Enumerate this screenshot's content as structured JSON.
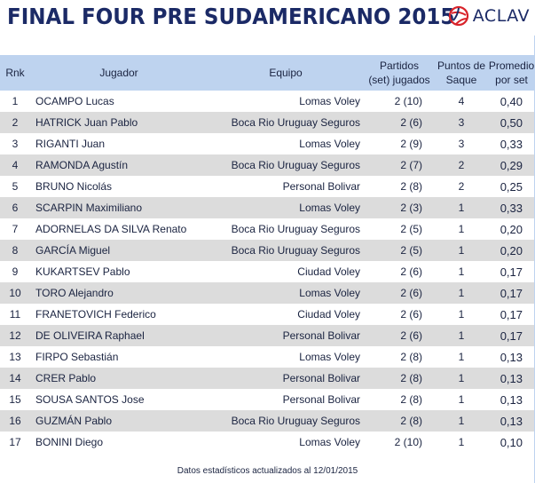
{
  "header": {
    "title": "FINAL FOUR PRE SUDAMERICANO 2015",
    "logo_text": "ACLAV",
    "logo_icon": "aclav-volleyball-logo",
    "colors": {
      "title": "#1b2a66",
      "logo_red": "#d8232a",
      "header_band": "#bed3ef",
      "stripe": "#dcdcdc"
    }
  },
  "table": {
    "columns": {
      "rnk": "Rnk",
      "jugador": "Jugador",
      "equipo": "Equipo",
      "partidos_line1": "Partidos",
      "partidos_line2": "(set) jugados",
      "puntos_line1": "Puntos de",
      "puntos_line2": "Saque",
      "promedio_line1": "Promedio",
      "promedio_line2": "por set"
    },
    "rows": [
      {
        "rnk": "1",
        "jugador": "OCAMPO Lucas",
        "equipo": "Lomas Voley",
        "partidos": "2 (10)",
        "puntos": "4",
        "promedio": "0,40"
      },
      {
        "rnk": "2",
        "jugador": "HATRICK Juan Pablo",
        "equipo": "Boca Rio Uruguay Seguros",
        "partidos": "2 (6)",
        "puntos": "3",
        "promedio": "0,50"
      },
      {
        "rnk": "3",
        "jugador": "RIGANTI Juan",
        "equipo": "Lomas Voley",
        "partidos": "2 (9)",
        "puntos": "3",
        "promedio": "0,33"
      },
      {
        "rnk": "4",
        "jugador": "RAMONDA Agustín",
        "equipo": "Boca Rio Uruguay Seguros",
        "partidos": "2 (7)",
        "puntos": "2",
        "promedio": "0,29"
      },
      {
        "rnk": "5",
        "jugador": "BRUNO Nicolás",
        "equipo": "Personal Bolivar",
        "partidos": "2 (8)",
        "puntos": "2",
        "promedio": "0,25"
      },
      {
        "rnk": "6",
        "jugador": "SCARPIN Maximiliano",
        "equipo": "Lomas Voley",
        "partidos": "2 (3)",
        "puntos": "1",
        "promedio": "0,33"
      },
      {
        "rnk": "7",
        "jugador": "ADORNELAS DA SILVA Renato",
        "equipo": "Boca Rio Uruguay Seguros",
        "partidos": "2 (5)",
        "puntos": "1",
        "promedio": "0,20"
      },
      {
        "rnk": "8",
        "jugador": "GARCÍA Miguel",
        "equipo": "Boca Rio Uruguay Seguros",
        "partidos": "2 (5)",
        "puntos": "1",
        "promedio": "0,20"
      },
      {
        "rnk": "9",
        "jugador": "KUKARTSEV Pablo",
        "equipo": "Ciudad Voley",
        "partidos": "2 (6)",
        "puntos": "1",
        "promedio": "0,17"
      },
      {
        "rnk": "10",
        "jugador": "TORO Alejandro",
        "equipo": "Lomas Voley",
        "partidos": "2 (6)",
        "puntos": "1",
        "promedio": "0,17"
      },
      {
        "rnk": "11",
        "jugador": "FRANETOVICH Federico",
        "equipo": "Ciudad Voley",
        "partidos": "2 (6)",
        "puntos": "1",
        "promedio": "0,17"
      },
      {
        "rnk": "12",
        "jugador": "DE OLIVEIRA Raphael",
        "equipo": "Personal Bolivar",
        "partidos": "2 (6)",
        "puntos": "1",
        "promedio": "0,17"
      },
      {
        "rnk": "13",
        "jugador": "FIRPO Sebastián",
        "equipo": "Lomas Voley",
        "partidos": "2 (8)",
        "puntos": "1",
        "promedio": "0,13"
      },
      {
        "rnk": "14",
        "jugador": "CRER Pablo",
        "equipo": "Personal Bolivar",
        "partidos": "2 (8)",
        "puntos": "1",
        "promedio": "0,13"
      },
      {
        "rnk": "15",
        "jugador": "SOUSA SANTOS Jose",
        "equipo": "Personal Bolivar",
        "partidos": "2 (8)",
        "puntos": "1",
        "promedio": "0,13"
      },
      {
        "rnk": "16",
        "jugador": "GUZMÁN Pablo",
        "equipo": "Boca Rio Uruguay Seguros",
        "partidos": "2 (8)",
        "puntos": "1",
        "promedio": "0,13"
      },
      {
        "rnk": "17",
        "jugador": "BONINI Diego",
        "equipo": "Lomas Voley",
        "partidos": "2 (10)",
        "puntos": "1",
        "promedio": "0,10"
      }
    ]
  },
  "footer": {
    "note": "Datos estadísticos actualizados al 12/01/2015"
  }
}
